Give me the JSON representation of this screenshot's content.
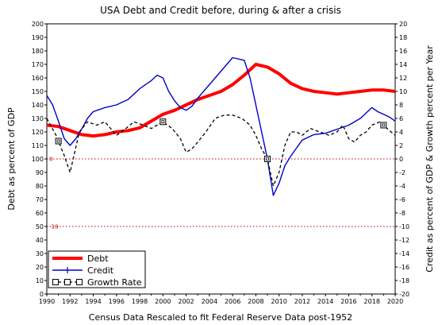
{
  "chart_data": {
    "type": "line",
    "title": "USA Debt and Credit before, during & after a crisis",
    "xlabel": "Census Data Rescaled to fit Federal Reserve Data post-1952",
    "ylabel": "Debt as percent of GDP",
    "y2label": "Credit as percent of GDP & Growth percent per Year",
    "xlim": [
      1990,
      2020
    ],
    "ylim": [
      0,
      200
    ],
    "y2lim": [
      -20,
      20
    ],
    "x_ticks": [
      1990,
      1992,
      1994,
      1996,
      1998,
      2000,
      2002,
      2004,
      2006,
      2008,
      2010,
      2012,
      2014,
      2016,
      2018,
      2020
    ],
    "y_ticks": [
      0,
      10,
      20,
      30,
      40,
      50,
      60,
      70,
      80,
      90,
      100,
      110,
      120,
      130,
      140,
      150,
      160,
      170,
      180,
      190,
      200
    ],
    "y2_ticks": [
      -20,
      -18,
      -16,
      -14,
      -12,
      -10,
      -8,
      -6,
      -4,
      -2,
      0,
      2,
      4,
      6,
      8,
      10,
      12,
      14,
      16,
      18,
      20
    ],
    "reference_lines": [
      {
        "y2": 0,
        "label": "0",
        "color": "#c00000",
        "style": "dotted"
      },
      {
        "y2": -10,
        "label": "-10",
        "color": "#c00000",
        "style": "dotted"
      }
    ],
    "legend_position": "bottom-left",
    "series": [
      {
        "name": "Debt",
        "color": "#ff0000",
        "axis": "left",
        "style": "thick-solid",
        "x": [
          1990,
          1991,
          1992,
          1993,
          1994,
          1995,
          1996,
          1997,
          1998,
          1999,
          2000,
          2001,
          2002,
          2003,
          2004,
          2005,
          2006,
          2007,
          2008,
          2009,
          2010,
          2011,
          2012,
          2013,
          2014,
          2015,
          2016,
          2017,
          2018,
          2019,
          2020
        ],
        "y": [
          125,
          124,
          121,
          118,
          117,
          118,
          120,
          121,
          123,
          128,
          133,
          136,
          140,
          144,
          147,
          150,
          155,
          162,
          170,
          168,
          163,
          156,
          152,
          150,
          149,
          148,
          149,
          150,
          151,
          151,
          150
        ]
      },
      {
        "name": "Credit",
        "color": "#0000cc",
        "axis": "left",
        "style": "thin-solid",
        "x": [
          1990,
          1990.5,
          1991,
          1991.5,
          1992,
          1992.5,
          1993,
          1993.5,
          1994,
          1995,
          1996,
          1997,
          1998,
          1999,
          1999.5,
          2000,
          2000.5,
          2001,
          2001.5,
          2002,
          2002.5,
          2003,
          2004,
          2005,
          2006,
          2007,
          2007.5,
          2008,
          2008.5,
          2009,
          2009.5,
          2010,
          2010.5,
          2011,
          2011.5,
          2012,
          2013,
          2014,
          2015,
          2016,
          2017,
          2018,
          2018.5,
          2019,
          2019.5,
          2020
        ],
        "y": [
          147,
          140,
          128,
          115,
          110,
          115,
          122,
          130,
          135,
          138,
          140,
          144,
          152,
          158,
          162,
          160,
          150,
          143,
          138,
          136,
          139,
          145,
          155,
          165,
          175,
          173,
          160,
          140,
          120,
          100,
          73,
          82,
          95,
          102,
          108,
          114,
          118,
          119,
          122,
          125,
          130,
          138,
          135,
          133,
          131,
          128
        ]
      },
      {
        "name": "Growth Rate",
        "color": "#000000",
        "axis": "right",
        "style": "dashed-squares",
        "x": [
          1990,
          1990.8,
          1991.5,
          1992,
          1992.8,
          1993.5,
          1994.3,
          1995,
          1996,
          1996.8,
          1997.5,
          1998.3,
          1999,
          2000,
          2000.8,
          2001.5,
          2002,
          2002.5,
          2003,
          2003.7,
          2004.5,
          2005.3,
          2006,
          2006.8,
          2007.5,
          2008,
          2008.5,
          2009,
          2009.5,
          2010,
          2010.5,
          2011,
          2011.5,
          2012,
          2012.7,
          2013.5,
          2014.3,
          2015,
          2015.5,
          2016,
          2016.5,
          2017,
          2017.5,
          2018,
          2018.7,
          2019.3,
          2020
        ],
        "y": [
          6,
          3.5,
          0.5,
          -2,
          4,
          5.5,
          5,
          5.5,
          3.5,
          4.5,
          5.5,
          5,
          4.5,
          5.5,
          4.5,
          3,
          1,
          1.5,
          2.5,
          4,
          6,
          6.5,
          6.5,
          6,
          5,
          3.5,
          1.5,
          0,
          -4,
          -2,
          2,
          4,
          4,
          3.5,
          4.5,
          4,
          3.5,
          4,
          5,
          3,
          2.5,
          3.5,
          4,
          5,
          5.5,
          4.5,
          3.5
        ]
      }
    ]
  }
}
